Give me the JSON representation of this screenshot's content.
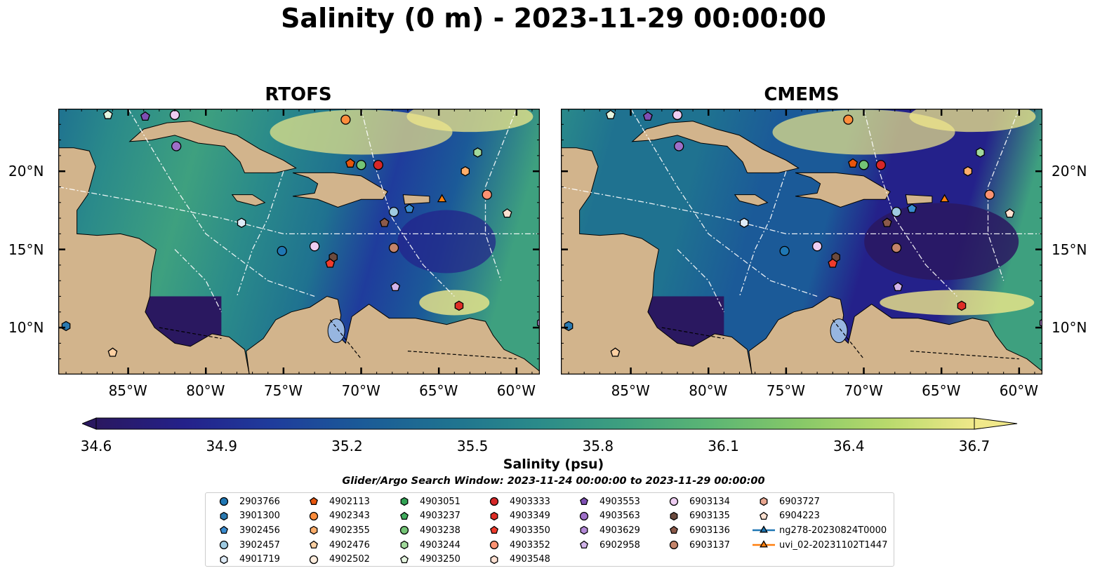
{
  "title": "Salinity (0 m) - 2023-11-29 00:00:00",
  "panels": [
    {
      "title": "RTOFS"
    },
    {
      "title": "CMEMS"
    }
  ],
  "axes": {
    "lon_ticks": [
      "85°W",
      "80°W",
      "75°W",
      "70°W",
      "65°W",
      "60°W"
    ],
    "lat_ticks": [
      "20°N",
      "15°N",
      "10°N"
    ],
    "lon_range": [
      -89.5,
      -58.5
    ],
    "lat_range": [
      7,
      24
    ]
  },
  "colorbar": {
    "label": "Salinity (psu)",
    "ticks": [
      "34.6",
      "34.9",
      "35.2",
      "35.5",
      "35.8",
      "36.1",
      "36.4",
      "36.7"
    ],
    "vmin": 34.6,
    "vmax": 36.7,
    "colormap": [
      "#2a1860",
      "#24218a",
      "#1f3c9c",
      "#1b5a98",
      "#1f7290",
      "#2a8a8a",
      "#3ea07f",
      "#5cb674",
      "#86c868",
      "#b8da6c",
      "#f0e88a"
    ]
  },
  "search_window": "Glider/Argo Search Window: 2023-11-24 00:00:00 to 2023-11-29 00:00:00",
  "legend": {
    "columns": [
      [
        {
          "label": "2903766",
          "marker": "circle",
          "color": "#1f77b4"
        },
        {
          "label": "3901300",
          "marker": "hexagon",
          "color": "#2a79b0"
        },
        {
          "label": "3902456",
          "marker": "pentagon",
          "color": "#3a8cd0"
        },
        {
          "label": "3902457",
          "marker": "circle",
          "color": "#9ecae1"
        },
        {
          "label": "4901719",
          "marker": "hexagon",
          "color": "#deebf7"
        }
      ],
      [
        {
          "label": "4902113",
          "marker": "pentagon",
          "color": "#e6550d"
        },
        {
          "label": "4902343",
          "marker": "circle",
          "color": "#fd8d3c"
        },
        {
          "label": "4902355",
          "marker": "hexagon",
          "color": "#fdae6b"
        },
        {
          "label": "4902476",
          "marker": "pentagon",
          "color": "#fdd0a2"
        },
        {
          "label": "4902502",
          "marker": "circle",
          "color": "#feedde"
        }
      ],
      [
        {
          "label": "4903051",
          "marker": "hexagon",
          "color": "#31a354"
        },
        {
          "label": "4903237",
          "marker": "pentagon",
          "color": "#41ab5d"
        },
        {
          "label": "4903238",
          "marker": "circle",
          "color": "#74c476"
        },
        {
          "label": "4903244",
          "marker": "hexagon",
          "color": "#a1d99b"
        },
        {
          "label": "4903250",
          "marker": "pentagon",
          "color": "#e5f5e0"
        }
      ],
      [
        {
          "label": "4903333",
          "marker": "circle",
          "color": "#d62728"
        },
        {
          "label": "4903349",
          "marker": "hexagon",
          "color": "#de2d26"
        },
        {
          "label": "4903350",
          "marker": "pentagon",
          "color": "#ef3b2c"
        },
        {
          "label": "4903352",
          "marker": "circle",
          "color": "#fc9272"
        },
        {
          "label": "4903548",
          "marker": "hexagon",
          "color": "#fee0d2"
        }
      ],
      [
        {
          "label": "4903553",
          "marker": "pentagon",
          "color": "#7e4fb3"
        },
        {
          "label": "4903563",
          "marker": "circle",
          "color": "#9e6fc8"
        },
        {
          "label": "4903629",
          "marker": "hexagon",
          "color": "#b48ad8"
        },
        {
          "label": "6902958",
          "marker": "pentagon",
          "color": "#d2b4ea"
        }
      ],
      [
        {
          "label": "6903134",
          "marker": "circle",
          "color": "#eecdf2"
        },
        {
          "label": "6903135",
          "marker": "hexagon",
          "color": "#6b4a3e"
        },
        {
          "label": "6903136",
          "marker": "pentagon",
          "color": "#8c5a4a"
        },
        {
          "label": "6903137",
          "marker": "circle",
          "color": "#c4846a"
        }
      ],
      [
        {
          "label": "6903727",
          "marker": "hexagon",
          "color": "#e8a690"
        },
        {
          "label": "6904223",
          "marker": "pentagon",
          "color": "#fde0d0"
        },
        {
          "label": "ng278-20230824T0000",
          "marker": "triangle-line",
          "color": "#1f77b4"
        },
        {
          "label": "uvi_02-20231102T1447",
          "marker": "triangle-line",
          "color": "#ff7f0e"
        }
      ]
    ]
  },
  "map_markers": [
    {
      "id": "4903250",
      "lon": -86.3,
      "lat": 23.6,
      "marker": "pentagon",
      "color": "#e5f5e0"
    },
    {
      "id": "4903553",
      "lon": -83.9,
      "lat": 23.5,
      "marker": "pentagon",
      "color": "#7e4fb3"
    },
    {
      "id": "6903134",
      "lon": -82.0,
      "lat": 23.6,
      "marker": "circle",
      "color": "#eecdf2"
    },
    {
      "id": "4903563",
      "lon": -81.9,
      "lat": 21.6,
      "marker": "circle",
      "color": "#9e6fc8"
    },
    {
      "id": "4902343",
      "lon": -71.0,
      "lat": 23.3,
      "marker": "circle",
      "color": "#fd8d3c"
    },
    {
      "id": "4902113",
      "lon": -70.7,
      "lat": 20.5,
      "marker": "pentagon",
      "color": "#e6550d"
    },
    {
      "id": "4903238",
      "lon": -70.0,
      "lat": 20.4,
      "marker": "circle",
      "color": "#74c476"
    },
    {
      "id": "4903333",
      "lon": -68.9,
      "lat": 20.4,
      "marker": "circle",
      "color": "#d62728"
    },
    {
      "id": "4903244",
      "lon": -62.5,
      "lat": 21.2,
      "marker": "hexagon",
      "color": "#a1d99b"
    },
    {
      "id": "4902355",
      "lon": -63.3,
      "lat": 20.0,
      "marker": "hexagon",
      "color": "#fdae6b"
    },
    {
      "id": "4903352",
      "lon": -61.9,
      "lat": 18.5,
      "marker": "circle",
      "color": "#fc9272"
    },
    {
      "id": "6904223",
      "lon": -60.6,
      "lat": 17.3,
      "marker": "pentagon",
      "color": "#fde0d0"
    },
    {
      "id": "3902457",
      "lon": -67.9,
      "lat": 17.4,
      "marker": "circle",
      "color": "#9ecae1"
    },
    {
      "id": "3902456",
      "lon": -66.9,
      "lat": 17.6,
      "marker": "pentagon",
      "color": "#3a8cd0"
    },
    {
      "id": "4901719",
      "lon": -77.7,
      "lat": 16.7,
      "marker": "hexagon",
      "color": "#deebf7"
    },
    {
      "id": "6903136",
      "lon": -68.5,
      "lat": 16.7,
      "marker": "pentagon",
      "color": "#8c5a4a"
    },
    {
      "id": "2903766",
      "lon": -75.1,
      "lat": 14.9,
      "marker": "circle",
      "color": "#1f77b4"
    },
    {
      "id": "6903134b",
      "lon": -73.0,
      "lat": 15.2,
      "marker": "circle",
      "color": "#eecdf2"
    },
    {
      "id": "6903137",
      "lon": -67.9,
      "lat": 15.1,
      "marker": "circle",
      "color": "#c4846a"
    },
    {
      "id": "6903135",
      "lon": -71.8,
      "lat": 14.5,
      "marker": "hexagon",
      "color": "#6b4a3e"
    },
    {
      "id": "4903350",
      "lon": -72.0,
      "lat": 14.1,
      "marker": "pentagon",
      "color": "#ef3b2c"
    },
    {
      "id": "6902958",
      "lon": -67.8,
      "lat": 12.6,
      "marker": "pentagon",
      "color": "#d2b4ea"
    },
    {
      "id": "4903349",
      "lon": -63.7,
      "lat": 11.4,
      "marker": "hexagon",
      "color": "#de2d26"
    },
    {
      "id": "3901300",
      "lon": -89.0,
      "lat": 10.1,
      "marker": "hexagon",
      "color": "#2a79b0"
    },
    {
      "id": "4903629",
      "lon": -58.4,
      "lat": 10.3,
      "marker": "hexagon",
      "color": "#b48ad8"
    },
    {
      "id": "4902476",
      "lon": -86.0,
      "lat": 8.4,
      "marker": "pentagon",
      "color": "#fdd0a2"
    },
    {
      "id": "uvi_02",
      "lon": -64.8,
      "lat": 18.2,
      "marker": "triangle",
      "color": "#ff7f0e"
    }
  ]
}
